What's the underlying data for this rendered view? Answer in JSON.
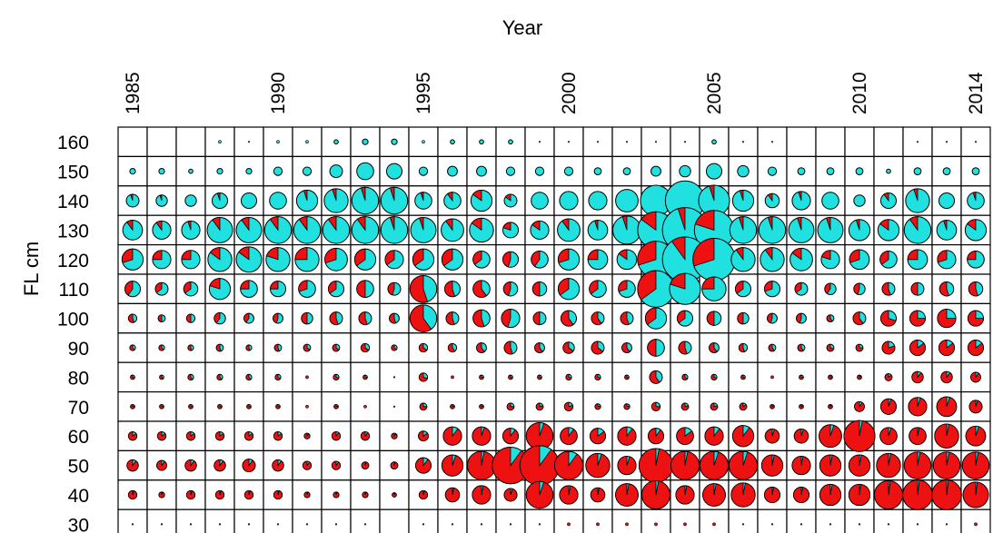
{
  "chart_data": {
    "type": "pie-grid",
    "xlabel": "Year",
    "ylabel": "FL cm",
    "x_tick_labels": [
      "1985",
      "1990",
      "1995",
      "2000",
      "2005",
      "2010",
      "2014"
    ],
    "x_tick_years": [
      1985,
      1990,
      1995,
      2000,
      2005,
      2010,
      2014
    ],
    "y_tick_labels": [
      "160",
      "150",
      "140",
      "130",
      "120",
      "110",
      "100",
      "90",
      "80",
      "70",
      "60",
      "50",
      "40",
      "30"
    ],
    "years": [
      1985,
      1986,
      1987,
      1988,
      1989,
      1990,
      1991,
      1992,
      1993,
      1994,
      1995,
      1996,
      1997,
      1998,
      1999,
      2000,
      2001,
      2002,
      2003,
      2004,
      2005,
      2006,
      2007,
      2008,
      2009,
      2010,
      2011,
      2012,
      2013,
      2014
    ],
    "length_bins": [
      160,
      150,
      140,
      130,
      120,
      110,
      100,
      90,
      80,
      70,
      60,
      50,
      40,
      30
    ],
    "colors": {
      "category_a": "#20e0e0",
      "category_b": "#ee1111",
      "outline": "#000000"
    },
    "size_scale_note": "relative sample size per year and length class, 0 to 1",
    "sizes": [
      [
        0,
        0,
        0,
        0.1,
        0.05,
        0.1,
        0.1,
        0.15,
        0.2,
        0.2,
        0.1,
        0.15,
        0.15,
        0.15,
        0.05,
        0.05,
        0.05,
        0.05,
        0.05,
        0.05,
        0.15,
        0.05,
        0.05,
        0,
        0,
        0,
        0,
        0.05,
        0.05,
        0.05
      ],
      [
        0.2,
        0.2,
        0.15,
        0.2,
        0.2,
        0.3,
        0.3,
        0.45,
        0.6,
        0.55,
        0.3,
        0.35,
        0.35,
        0.3,
        0.3,
        0.3,
        0.25,
        0.25,
        0.35,
        0.4,
        0.55,
        0.4,
        0.3,
        0.25,
        0.25,
        0.25,
        0.15,
        0.25,
        0.25,
        0.25
      ],
      [
        0.45,
        0.4,
        0.4,
        0.55,
        0.55,
        0.6,
        0.75,
        0.85,
        0.95,
        0.95,
        0.6,
        0.6,
        0.75,
        0.45,
        0.6,
        0.65,
        0.65,
        0.8,
        1.1,
        1.4,
        1.1,
        0.75,
        0.5,
        0.65,
        0.6,
        0.4,
        0.55,
        0.85,
        0.55,
        0.6
      ],
      [
        0.7,
        0.65,
        0.65,
        0.9,
        0.9,
        0.95,
        0.95,
        0.95,
        0.95,
        0.95,
        0.9,
        0.8,
        0.85,
        0.55,
        0.65,
        0.8,
        0.7,
        1.0,
        1.3,
        1.6,
        1.4,
        0.95,
        0.95,
        0.9,
        0.9,
        0.75,
        0.75,
        0.95,
        0.7,
        0.75
      ],
      [
        0.75,
        0.65,
        0.65,
        0.85,
        0.9,
        0.85,
        0.85,
        0.8,
        0.75,
        0.65,
        0.75,
        0.75,
        0.6,
        0.55,
        0.6,
        0.75,
        0.7,
        0.7,
        1.3,
        1.6,
        1.5,
        0.85,
        0.85,
        0.8,
        0.65,
        0.7,
        0.6,
        0.7,
        0.65,
        0.6
      ],
      [
        0.55,
        0.45,
        0.5,
        0.75,
        0.6,
        0.55,
        0.6,
        0.55,
        0.6,
        0.45,
        0.95,
        0.55,
        0.6,
        0.5,
        0.5,
        0.75,
        0.6,
        0.6,
        1.3,
        1.1,
        0.85,
        0.55,
        0.55,
        0.45,
        0.4,
        0.4,
        0.45,
        0.45,
        0.5,
        0.5
      ],
      [
        0.3,
        0.25,
        0.3,
        0.4,
        0.35,
        0.35,
        0.4,
        0.45,
        0.45,
        0.35,
        0.95,
        0.45,
        0.6,
        0.65,
        0.45,
        0.55,
        0.45,
        0.45,
        0.75,
        0.55,
        0.5,
        0.4,
        0.35,
        0.35,
        0.25,
        0.45,
        0.55,
        0.55,
        0.65,
        0.55
      ],
      [
        0.2,
        0.2,
        0.2,
        0.25,
        0.2,
        0.25,
        0.25,
        0.25,
        0.3,
        0.2,
        0.3,
        0.3,
        0.35,
        0.45,
        0.35,
        0.4,
        0.45,
        0.35,
        0.6,
        0.45,
        0.35,
        0.3,
        0.25,
        0.25,
        0.25,
        0.25,
        0.45,
        0.55,
        0.55,
        0.55
      ],
      [
        0.15,
        0.15,
        0.2,
        0.2,
        0.2,
        0.2,
        0.1,
        0.2,
        0.15,
        0.05,
        0.3,
        0.1,
        0.15,
        0.15,
        0.15,
        0.2,
        0.2,
        0.15,
        0.45,
        0.2,
        0.2,
        0.15,
        0.1,
        0.15,
        0.15,
        0.15,
        0.25,
        0.4,
        0.4,
        0.35
      ],
      [
        0.15,
        0.15,
        0.15,
        0.15,
        0.15,
        0.15,
        0.1,
        0.15,
        0.1,
        0.05,
        0.25,
        0.15,
        0.15,
        0.25,
        0.25,
        0.3,
        0.2,
        0.2,
        0.3,
        0.25,
        0.25,
        0.25,
        0.15,
        0.15,
        0.15,
        0.35,
        0.55,
        0.65,
        0.7,
        0.45
      ],
      [
        0.3,
        0.3,
        0.3,
        0.3,
        0.3,
        0.3,
        0.2,
        0.3,
        0.3,
        0.2,
        0.35,
        0.65,
        0.65,
        0.55,
        0.95,
        0.6,
        0.55,
        0.65,
        0.55,
        0.6,
        0.65,
        0.75,
        0.5,
        0.5,
        0.8,
        1.1,
        0.6,
        0.6,
        0.85,
        0.7
      ],
      [
        0.4,
        0.35,
        0.4,
        0.4,
        0.45,
        0.4,
        0.3,
        0.3,
        0.25,
        0.25,
        0.55,
        0.75,
        1.0,
        1.3,
        1.4,
        1.0,
        0.85,
        0.65,
        1.2,
        1.0,
        1.0,
        1.0,
        0.75,
        0.65,
        0.75,
        0.75,
        0.85,
        0.95,
        0.95,
        0.95
      ],
      [
        0.3,
        0.2,
        0.3,
        0.3,
        0.3,
        0.3,
        0.2,
        0.2,
        0.2,
        0.15,
        0.3,
        0.5,
        0.65,
        0.45,
        0.95,
        0.65,
        0.5,
        0.8,
        1.0,
        0.65,
        0.8,
        0.85,
        0.55,
        0.55,
        0.75,
        0.75,
        1.0,
        1.05,
        1.05,
        0.9
      ],
      [
        0.02,
        0.02,
        0.02,
        0.02,
        0.02,
        0.02,
        0.02,
        0.02,
        0.05,
        0,
        0.02,
        0.05,
        0.05,
        0.05,
        0.05,
        0.1,
        0.1,
        0.1,
        0.1,
        0.1,
        0.1,
        0.05,
        0.05,
        0.05,
        0.05,
        0.05,
        0.05,
        0.05,
        0.05,
        0.1
      ]
    ],
    "fraction_b": [
      [
        0,
        0,
        0,
        0,
        0,
        0,
        0,
        0,
        0,
        0,
        0,
        0,
        0,
        0,
        0,
        0,
        0,
        0,
        0,
        0,
        0,
        0,
        0,
        0,
        0,
        0,
        0,
        0,
        0,
        0
      ],
      [
        0,
        0,
        0,
        0,
        0,
        0,
        0,
        0,
        0,
        0,
        0,
        0,
        0,
        0,
        0,
        0,
        0,
        0,
        0,
        0,
        0,
        0,
        0,
        0,
        0,
        0,
        0,
        0,
        0,
        0
      ],
      [
        0.05,
        0.05,
        0,
        0.05,
        0,
        0,
        0.05,
        0.05,
        0.05,
        0.05,
        0.05,
        0.1,
        0.15,
        0.15,
        0,
        0,
        0,
        0,
        0,
        0,
        0.05,
        0.05,
        0.1,
        0.05,
        0,
        0,
        0.1,
        0.05,
        0,
        0.05
      ],
      [
        0.1,
        0.1,
        0.05,
        0.1,
        0.1,
        0.1,
        0.1,
        0.1,
        0.1,
        0.05,
        0.05,
        0.1,
        0.15,
        0.2,
        0.15,
        0.1,
        0.05,
        0.05,
        0.15,
        0.05,
        0.2,
        0.05,
        0.05,
        0.05,
        0.05,
        0.05,
        0.15,
        0.1,
        0.05,
        0.15
      ],
      [
        0.3,
        0.25,
        0.25,
        0.15,
        0.15,
        0.2,
        0.25,
        0.3,
        0.35,
        0.35,
        0.35,
        0.35,
        0.35,
        0.45,
        0.4,
        0.3,
        0.25,
        0.15,
        0.3,
        0.1,
        0.3,
        0.1,
        0.1,
        0.15,
        0.2,
        0.3,
        0.35,
        0.25,
        0.3,
        0.25
      ],
      [
        0.4,
        0.35,
        0.35,
        0.2,
        0.25,
        0.25,
        0.3,
        0.35,
        0.5,
        0.45,
        0.55,
        0.55,
        0.6,
        0.45,
        0.5,
        0.35,
        0.35,
        0.3,
        0.35,
        0.2,
        0.25,
        0.35,
        0.3,
        0.35,
        0.4,
        0.45,
        0.55,
        0.5,
        0.55,
        0.55
      ],
      [
        0.55,
        0.5,
        0.5,
        0.4,
        0.4,
        0.45,
        0.5,
        0.55,
        0.55,
        0.55,
        0.6,
        0.55,
        0.55,
        0.45,
        0.5,
        0.6,
        0.6,
        0.55,
        0.35,
        0.35,
        0.5,
        0.5,
        0.45,
        0.45,
        0.6,
        0.6,
        0.7,
        0.75,
        0.75,
        0.75
      ],
      [
        0.6,
        0.6,
        0.55,
        0.55,
        0.55,
        0.55,
        0.65,
        0.65,
        0.65,
        0.65,
        0.65,
        0.6,
        0.6,
        0.55,
        0.6,
        0.65,
        0.65,
        0.6,
        0.5,
        0.55,
        0.6,
        0.55,
        0.6,
        0.6,
        0.7,
        0.75,
        0.8,
        0.85,
        0.85,
        0.85
      ],
      [
        0.7,
        0.65,
        0.6,
        0.6,
        0.6,
        0.65,
        0.75,
        0.7,
        0.75,
        0.75,
        0.7,
        0.75,
        0.75,
        0.7,
        0.7,
        0.7,
        0.7,
        0.7,
        0.6,
        0.65,
        0.7,
        0.7,
        0.75,
        0.75,
        0.8,
        0.85,
        0.85,
        0.9,
        0.9,
        0.9
      ],
      [
        0.8,
        0.75,
        0.75,
        0.75,
        0.75,
        0.75,
        0.8,
        0.8,
        0.85,
        0.85,
        0.75,
        0.8,
        0.8,
        0.75,
        0.8,
        0.8,
        0.8,
        0.8,
        0.75,
        0.8,
        0.8,
        0.85,
        0.85,
        0.85,
        0.9,
        0.9,
        0.95,
        0.95,
        0.95,
        0.95
      ],
      [
        0.85,
        0.85,
        0.85,
        0.85,
        0.85,
        0.85,
        0.9,
        0.9,
        0.9,
        0.9,
        0.85,
        0.9,
        0.95,
        0.9,
        0.95,
        0.9,
        0.85,
        0.9,
        0.9,
        0.85,
        0.9,
        0.9,
        0.95,
        0.95,
        0.95,
        0.97,
        0.95,
        0.97,
        0.97,
        0.95
      ],
      [
        0.9,
        0.9,
        0.9,
        0.9,
        0.9,
        0.9,
        0.9,
        0.9,
        0.95,
        0.95,
        0.9,
        0.95,
        0.97,
        0.9,
        0.9,
        0.9,
        0.95,
        0.95,
        0.97,
        0.97,
        0.95,
        0.95,
        0.97,
        0.97,
        0.97,
        0.97,
        0.97,
        0.97,
        0.97,
        0.97
      ],
      [
        0.95,
        0.95,
        0.95,
        0.95,
        0.95,
        0.95,
        0.95,
        0.95,
        0.95,
        0.95,
        0.95,
        0.97,
        0.97,
        0.95,
        0.95,
        0.97,
        0.97,
        0.97,
        0.97,
        0.97,
        0.97,
        0.97,
        0.97,
        0.97,
        0.97,
        0.98,
        0.98,
        0.98,
        0.98,
        0.98
      ],
      [
        0.97,
        0.97,
        0.97,
        0.97,
        0.97,
        0.97,
        0.97,
        0.97,
        0.97,
        0.97,
        0.97,
        0.97,
        0.97,
        0.97,
        0.97,
        0.97,
        0.97,
        0.97,
        0.97,
        0.97,
        0.97,
        0.97,
        0.97,
        0.97,
        0.97,
        0.97,
        0.97,
        0.97,
        0.97,
        0.97
      ]
    ]
  }
}
